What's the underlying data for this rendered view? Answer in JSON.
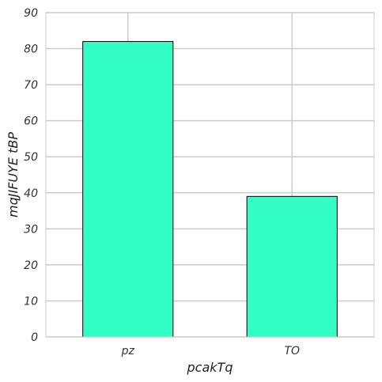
{
  "chart_data": {
    "type": "bar",
    "categories": [
      "pz",
      "TO"
    ],
    "values": [
      82,
      39
    ],
    "xlabel": "pcakTq",
    "ylabel": "mqJIFUYE tBP",
    "ylim": [
      0,
      90
    ],
    "yticks": [
      0,
      10,
      20,
      30,
      40,
      50,
      60,
      70,
      80,
      90
    ],
    "grid": true,
    "bar_color": "#33ffc4",
    "edge_color": "#000000",
    "grid_color": "#cccccc"
  }
}
